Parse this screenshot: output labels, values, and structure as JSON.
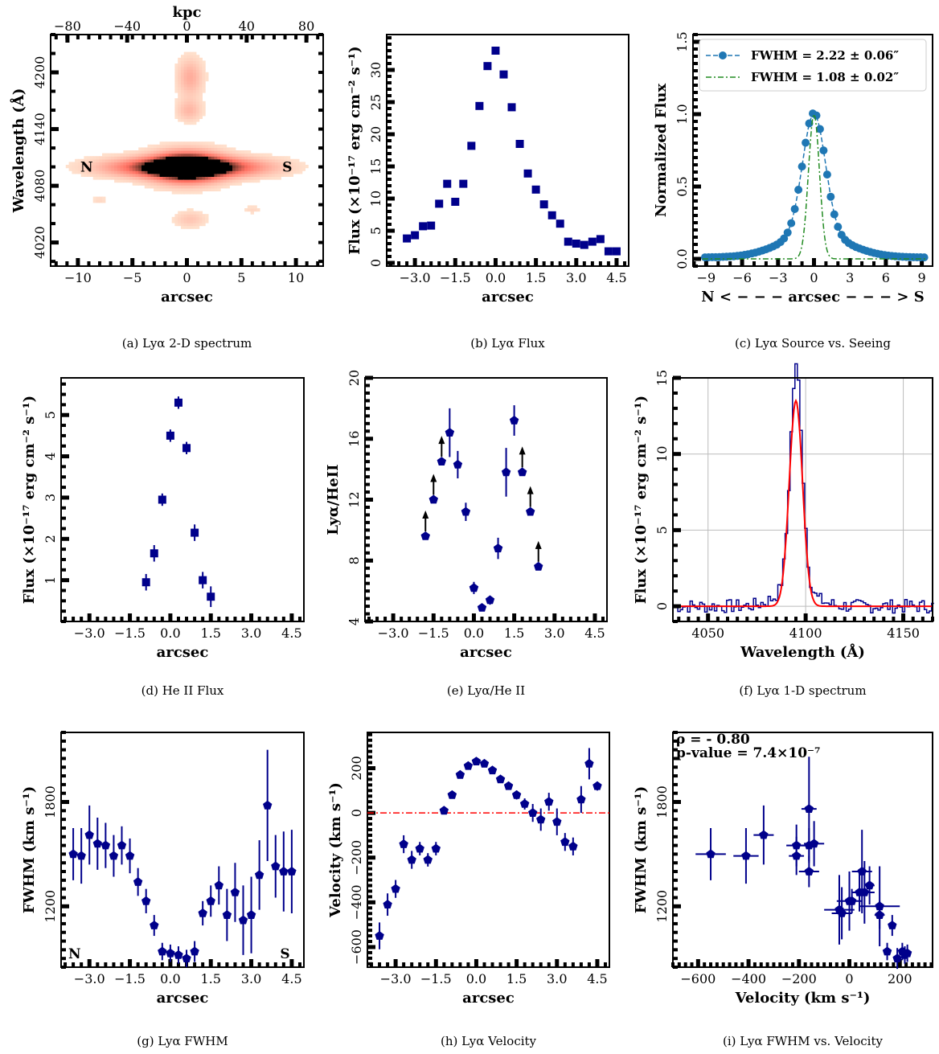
{
  "colors": {
    "marker": "#00008b",
    "red": "#ff0000",
    "green": "#228b22",
    "blue": "#1f77b4",
    "line": "#00008b"
  },
  "panels": [
    {
      "id": "a",
      "type": "heatmap",
      "caption": "(a) Lyα 2-D spectrum",
      "xlabel": "arcsec",
      "ylabel": "Wavelength (Å)",
      "top_label": "kpc",
      "xlim": [
        -12.5,
        12.5
      ],
      "ylim": [
        3995,
        4240
      ],
      "xticks": [
        -10,
        -5,
        0,
        5,
        10
      ],
      "xtick_labels": [
        "−10",
        "−5",
        "0",
        "5",
        "10"
      ],
      "yticks": [
        4020,
        4080,
        4140,
        4200
      ],
      "ytick_labels": [
        "4020",
        "4080",
        "4140",
        "4200"
      ],
      "topticks": [
        -80,
        -40,
        0,
        40,
        80
      ],
      "toptick_labels": [
        "−80",
        "−40",
        "0",
        "40",
        "80"
      ],
      "annotations": [
        {
          "text": "N",
          "x": -9.2,
          "y": 4100
        },
        {
          "text": "S",
          "x": 9.2,
          "y": 4100
        }
      ],
      "blobs": [
        {
          "x": 0,
          "y": 4100,
          "sx": 2.2,
          "sy": 11,
          "w": 1.0
        },
        {
          "x": -3,
          "y": 4100,
          "sx": 3.5,
          "sy": 7,
          "w": 0.55
        },
        {
          "x": 3,
          "y": 4100,
          "sx": 3.5,
          "sy": 7,
          "w": 0.55
        },
        {
          "x": 0.3,
          "y": 4195,
          "sx": 0.8,
          "sy": 14,
          "w": 0.25
        },
        {
          "x": 0.2,
          "y": 4160,
          "sx": 0.8,
          "sy": 8,
          "w": 0.2
        },
        {
          "x": 0.3,
          "y": 4045,
          "sx": 1,
          "sy": 6,
          "w": 0.15
        },
        {
          "x": -8,
          "y": 4065,
          "sx": 0.5,
          "sy": 3,
          "w": 0.08
        },
        {
          "x": 6,
          "y": 4055,
          "sx": 0.6,
          "sy": 3,
          "w": 0.08
        }
      ]
    },
    {
      "id": "b",
      "type": "scatter",
      "caption": "(b) Lyα Flux",
      "xlabel": "arcsec",
      "ylabel": "Flux (×10⁻¹⁷ erg cm⁻² s⁻¹)",
      "xlim": [
        -4.05,
        4.95
      ],
      "ylim": [
        -0.5,
        35.5
      ],
      "xticks": [
        -3,
        -1.5,
        0,
        1.5,
        3,
        4.5
      ],
      "xtick_labels": [
        "−3.0",
        "−1.5",
        "0.0",
        "1.5",
        "3.0",
        "4.5"
      ],
      "yticks": [
        0,
        5,
        10,
        15,
        20,
        25,
        30
      ],
      "ytick_labels": [
        "0",
        "5",
        "10",
        "15",
        "20",
        "25",
        "30"
      ],
      "marker": "square",
      "x": [
        -3.3,
        -3.0,
        -2.7,
        -2.4,
        -2.1,
        -1.8,
        -1.5,
        -1.2,
        -0.9,
        -0.6,
        -0.3,
        0.0,
        0.3,
        0.6,
        0.9,
        1.2,
        1.5,
        1.8,
        2.1,
        2.4,
        2.7,
        3.0,
        3.3,
        3.6,
        3.9,
        4.2,
        4.5
      ],
      "y": [
        3.8,
        4.3,
        5.7,
        5.8,
        9.2,
        12.3,
        9.5,
        12.3,
        18.2,
        24.4,
        30.6,
        33.0,
        29.3,
        24.2,
        18.5,
        13.9,
        11.4,
        9.1,
        7.4,
        6.1,
        3.3,
        3.0,
        2.8,
        3.3,
        3.7,
        1.8,
        1.8
      ]
    },
    {
      "id": "c",
      "type": "line",
      "caption": "(c) Lyα Source vs. Seeing",
      "xlabel": "N < − − − arcsec − − − > S",
      "ylabel": "Normalized Flux",
      "xlim": [
        -10.1,
        9.9
      ],
      "ylim": [
        -0.05,
        1.55
      ],
      "xticks": [
        -9,
        -6,
        -3,
        0,
        3,
        6,
        9
      ],
      "xtick_labels": [
        "−9",
        "−6",
        "−3",
        "0",
        "3",
        "6",
        "9"
      ],
      "yticks": [
        0,
        0.5,
        1.0,
        1.5
      ],
      "ytick_labels": [
        "0.0",
        "0.5",
        "1.0",
        "1.5"
      ],
      "legend": {
        "position": "top-right",
        "entries": [
          "FWHM = 2.22 ± 0.06″",
          "FWHM = 1.08 ± 0.02″"
        ]
      },
      "series": [
        {
          "name": "FWHM = 2.22 ± 0.06″",
          "fwhm": 2.22,
          "style": "dashed-dots"
        },
        {
          "name": "FWHM = 1.08 ± 0.02″",
          "fwhm": 1.08,
          "style": "dashdot"
        }
      ]
    },
    {
      "id": "d",
      "type": "scatter",
      "caption": "(d) He II Flux",
      "xlabel": "arcsec",
      "ylabel": "Flux (×10⁻¹⁷ erg cm⁻² s⁻¹)",
      "xlim": [
        -4.05,
        4.95
      ],
      "ylim": [
        0,
        5.9
      ],
      "xticks": [
        -3,
        -1.5,
        0,
        1.5,
        3,
        4.5
      ],
      "xtick_labels": [
        "−3.0",
        "−1.5",
        "0.0",
        "1.5",
        "3.0",
        "4.5"
      ],
      "yticks": [
        1,
        2,
        3,
        4,
        5
      ],
      "ytick_labels": [
        "1",
        "2",
        "3",
        "4",
        "5"
      ],
      "marker": "square",
      "x": [
        -0.9,
        -0.6,
        -0.3,
        0.0,
        0.3,
        0.6,
        0.9,
        1.2,
        1.5
      ],
      "y": [
        0.95,
        1.65,
        2.95,
        4.5,
        5.3,
        4.2,
        2.15,
        1.0,
        0.6
      ],
      "yerr": [
        0.2,
        0.2,
        0.15,
        0.15,
        0.15,
        0.15,
        0.2,
        0.2,
        0.25
      ]
    },
    {
      "id": "e",
      "type": "scatter",
      "caption": "(e) Lyα/He II",
      "xlabel": "arcsec",
      "ylabel": "Lyα/HeII",
      "xlim": [
        -4.05,
        4.95
      ],
      "ylim": [
        4,
        20
      ],
      "xticks": [
        -3,
        -1.5,
        0,
        1.5,
        3,
        4.5
      ],
      "xtick_labels": [
        "−3.0",
        "−1.5",
        "0.0",
        "1.5",
        "3.0",
        "4.5"
      ],
      "yticks": [
        4,
        8,
        12,
        16,
        20
      ],
      "ytick_labels": [
        "4",
        "8",
        "12",
        "16",
        "20"
      ],
      "marker": "pentagon",
      "x": [
        -1.8,
        -1.5,
        -1.2,
        -0.9,
        -0.6,
        -0.3,
        0.0,
        0.3,
        0.6,
        0.9,
        1.2,
        1.5,
        1.8,
        2.1,
        2.4
      ],
      "y": [
        9.6,
        12.0,
        14.5,
        16.4,
        14.3,
        11.2,
        6.2,
        4.9,
        5.4,
        8.8,
        13.8,
        17.2,
        13.8,
        11.2,
        7.6
      ],
      "yerr": [
        0,
        0,
        0,
        1.6,
        0.9,
        0.6,
        0.4,
        0.2,
        0.3,
        0.7,
        1.6,
        1.0,
        0,
        0,
        0
      ],
      "lower_limit": [
        true,
        true,
        true,
        false,
        false,
        false,
        false,
        false,
        false,
        false,
        false,
        false,
        true,
        true,
        true
      ]
    },
    {
      "id": "f",
      "type": "line",
      "caption": "(f) Lyα 1-D spectrum",
      "xlabel": "Wavelength (Å)",
      "ylabel": "Flux (×10⁻¹⁷ erg cm⁻² s⁻¹)",
      "xlim": [
        4032,
        4165
      ],
      "ylim": [
        -1,
        15
      ],
      "grid": true,
      "xticks": [
        4050,
        4100,
        4150
      ],
      "xtick_labels": [
        "4050",
        "4100",
        "4150"
      ],
      "yticks": [
        0,
        5,
        10,
        15
      ],
      "ytick_labels": [
        "0",
        "5",
        "10",
        "15"
      ],
      "fit_peak": 13.5,
      "fit_center": 4095,
      "fit_sigma": 3.4
    },
    {
      "id": "g",
      "type": "scatter",
      "caption": "(g) Lyα FWHM",
      "xlabel": "arcsec",
      "ylabel": "FWHM (km s⁻¹)",
      "xlim": [
        -4.05,
        4.95
      ],
      "ylim": [
        850,
        2200
      ],
      "xticks": [
        -3,
        -1.5,
        0,
        1.5,
        3,
        4.5
      ],
      "xtick_labels": [
        "−3.0",
        "−1.5",
        "0.0",
        "1.5",
        "3.0",
        "4.5"
      ],
      "yticks": [
        1200,
        1800
      ],
      "ytick_labels": [
        "1200",
        "1800"
      ],
      "marker": "pentagon",
      "annotations": [
        {
          "text": "N",
          "x": -3.55,
          "y": 900
        },
        {
          "text": "S",
          "x": 4.25,
          "y": 900
        }
      ],
      "x": [
        -3.6,
        -3.3,
        -3.0,
        -2.7,
        -2.4,
        -2.1,
        -1.8,
        -1.5,
        -1.2,
        -0.9,
        -0.6,
        -0.3,
        0.0,
        0.3,
        0.6,
        0.9,
        1.2,
        1.5,
        1.8,
        2.1,
        2.4,
        2.7,
        3.0,
        3.3,
        3.6,
        3.9,
        4.2,
        4.5
      ],
      "y": [
        1500,
        1490,
        1610,
        1560,
        1550,
        1490,
        1550,
        1490,
        1340,
        1230,
        1090,
        940,
        930,
        920,
        900,
        940,
        1160,
        1230,
        1320,
        1150,
        1280,
        1120,
        1150,
        1380,
        1780,
        1430,
        1400,
        1400
      ],
      "yerr": [
        150,
        160,
        170,
        150,
        130,
        120,
        110,
        100,
        80,
        70,
        60,
        50,
        50,
        50,
        50,
        60,
        70,
        90,
        110,
        150,
        170,
        200,
        220,
        200,
        320,
        180,
        230,
        240
      ]
    },
    {
      "id": "h",
      "type": "scatter",
      "caption": "(h) Lyα Velocity",
      "xlabel": "arcsec",
      "ylabel": "Velocity (km s⁻¹)",
      "xlim": [
        -4.05,
        4.95
      ],
      "ylim": [
        -690,
        360
      ],
      "xticks": [
        -3,
        -1.5,
        0,
        1.5,
        3,
        4.5
      ],
      "xtick_labels": [
        "−3.0",
        "−1.5",
        "0.0",
        "1.5",
        "3.0",
        "4.5"
      ],
      "yticks": [
        -600,
        -400,
        -200,
        0,
        200
      ],
      "ytick_labels": [
        "−600",
        "−400",
        "−200",
        "0",
        "200"
      ],
      "hline": 0,
      "marker": "pentagon",
      "x": [
        -3.6,
        -3.3,
        -3.0,
        -2.7,
        -2.4,
        -2.1,
        -1.8,
        -1.5,
        -1.2,
        -0.9,
        -0.6,
        -0.3,
        0.0,
        0.3,
        0.6,
        0.9,
        1.2,
        1.5,
        1.8,
        2.1,
        2.4,
        2.7,
        3.0,
        3.3,
        3.6,
        3.9,
        4.2,
        4.5
      ],
      "y": [
        -550,
        -410,
        -340,
        -140,
        -210,
        -160,
        -210,
        -160,
        10,
        80,
        170,
        210,
        230,
        220,
        190,
        150,
        120,
        80,
        40,
        0,
        -30,
        50,
        -40,
        -130,
        -150,
        60,
        220,
        120
      ],
      "yerr": [
        60,
        50,
        40,
        40,
        40,
        30,
        30,
        30,
        15,
        15,
        15,
        15,
        15,
        15,
        15,
        15,
        15,
        20,
        25,
        40,
        50,
        40,
        60,
        40,
        40,
        60,
        70,
        20
      ]
    },
    {
      "id": "i",
      "type": "scatter",
      "caption": "(i) Lyα FWHM vs. Velocity",
      "xlabel": "Velocity (km s⁻¹)",
      "ylabel": "FWHM (km s⁻¹)",
      "xlim": [
        -700,
        330
      ],
      "ylim": [
        850,
        2200
      ],
      "xticks": [
        -600,
        -400,
        -200,
        0,
        200
      ],
      "xtick_labels": [
        "−600",
        "−400",
        "−200",
        "0",
        "200"
      ],
      "yticks": [
        1200,
        1800
      ],
      "ytick_labels": [
        "1200",
        "1800"
      ],
      "stats": [
        "ρ = - 0.80",
        "p-value = 7.4×10⁻⁷"
      ],
      "marker": "pentagon",
      "x": [
        -550,
        -410,
        -340,
        -210,
        -160,
        -210,
        -160,
        -140,
        -160,
        10,
        80,
        40,
        0,
        -30,
        50,
        -40,
        120,
        120,
        60,
        170,
        210,
        220,
        230,
        190,
        150
      ],
      "y": [
        1500,
        1490,
        1610,
        1550,
        1760,
        1490,
        1550,
        1560,
        1400,
        1230,
        1320,
        1280,
        1230,
        1160,
        1400,
        1180,
        1200,
        1150,
        1280,
        1090,
        940,
        920,
        930,
        900,
        940
      ],
      "xerr": [
        60,
        50,
        40,
        40,
        30,
        30,
        30,
        40,
        40,
        15,
        20,
        30,
        50,
        40,
        40,
        60,
        80,
        20,
        40,
        15,
        15,
        15,
        15,
        15,
        15
      ],
      "yerr": [
        150,
        160,
        170,
        120,
        300,
        110,
        100,
        130,
        90,
        70,
        110,
        110,
        170,
        150,
        240,
        200,
        230,
        80,
        180,
        60,
        50,
        50,
        50,
        60,
        50
      ]
    }
  ]
}
